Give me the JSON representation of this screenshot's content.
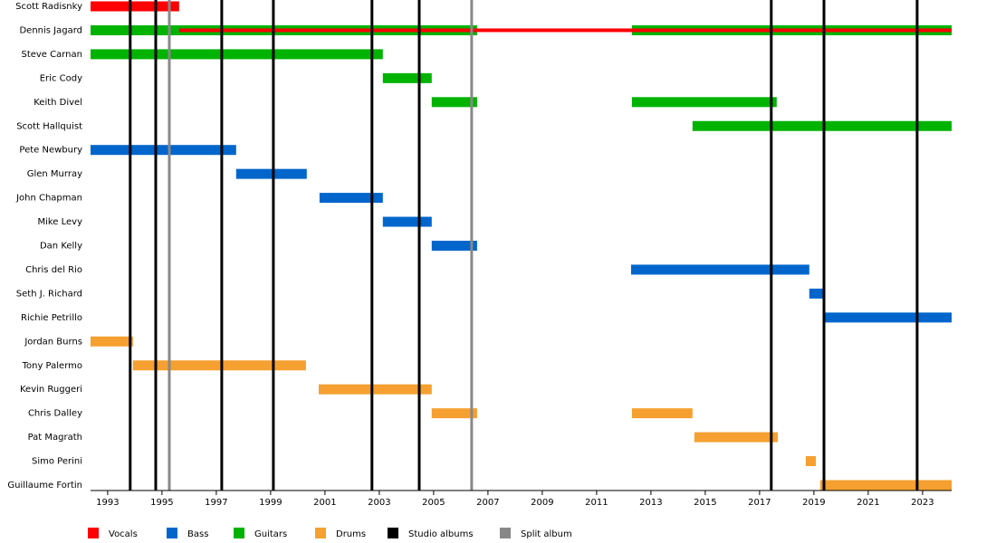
{
  "chart_data": {
    "type": "timeline",
    "xlim": [
      1992.37,
      2024.07
    ],
    "xticks": [
      1993,
      1995,
      1997,
      1999,
      2001,
      2003,
      2005,
      2007,
      2009,
      2011,
      2013,
      2015,
      2017,
      2019,
      2021,
      2023
    ],
    "roles": [
      {
        "name": "Vocals",
        "color": "#ff0000"
      },
      {
        "name": "Bass",
        "color": "#0066cc"
      },
      {
        "name": "Guitars",
        "color": "#00b300"
      },
      {
        "name": "Drums",
        "color": "#f5a030"
      }
    ],
    "members": [
      {
        "name": "Scott Radisnky",
        "bars": [
          {
            "role": "Vocals",
            "start": 1992.37,
            "end": 1995.63
          }
        ]
      },
      {
        "name": "Dennis Jagard",
        "bars": [
          {
            "role": "Guitars",
            "start": 1992.37,
            "end": 2006.6
          },
          {
            "role": "Guitars",
            "start": 2012.3,
            "end": 2024.07
          },
          {
            "role": "Vocals",
            "start": 1995.63,
            "end": 2024.07
          }
        ]
      },
      {
        "name": "Steve Carnan",
        "bars": [
          {
            "role": "Guitars",
            "start": 1992.37,
            "end": 2003.13
          }
        ]
      },
      {
        "name": "Eric Cody",
        "bars": [
          {
            "role": "Guitars",
            "start": 2003.13,
            "end": 2004.93
          }
        ]
      },
      {
        "name": "Keith Divel",
        "bars": [
          {
            "role": "Guitars",
            "start": 2004.93,
            "end": 2006.6
          },
          {
            "role": "Guitars",
            "start": 2012.3,
            "end": 2017.63
          }
        ]
      },
      {
        "name": "Scott Hallquist",
        "bars": [
          {
            "role": "Guitars",
            "start": 2014.53,
            "end": 2024.07
          }
        ]
      },
      {
        "name": "Pete Newbury",
        "bars": [
          {
            "role": "Bass",
            "start": 1992.37,
            "end": 1997.73
          }
        ]
      },
      {
        "name": "Glen Murray",
        "bars": [
          {
            "role": "Bass",
            "start": 1997.73,
            "end": 2000.33
          }
        ]
      },
      {
        "name": "John Chapman",
        "bars": [
          {
            "role": "Bass",
            "start": 2000.8,
            "end": 2003.13
          }
        ]
      },
      {
        "name": "Mike Levy",
        "bars": [
          {
            "role": "Bass",
            "start": 2003.13,
            "end": 2004.93
          }
        ]
      },
      {
        "name": "Dan Kelly",
        "bars": [
          {
            "role": "Bass",
            "start": 2004.93,
            "end": 2006.6
          }
        ]
      },
      {
        "name": "Chris del Rio",
        "bars": [
          {
            "role": "Bass",
            "start": 2012.27,
            "end": 2018.83
          }
        ]
      },
      {
        "name": "Seth J. Richard",
        "bars": [
          {
            "role": "Bass",
            "start": 2018.83,
            "end": 2019.4
          }
        ]
      },
      {
        "name": "Richie Petrillo",
        "bars": [
          {
            "role": "Bass",
            "start": 2019.4,
            "end": 2024.07
          }
        ]
      },
      {
        "name": "Jordan Burns",
        "bars": [
          {
            "role": "Drums",
            "start": 1992.37,
            "end": 1993.93
          }
        ]
      },
      {
        "name": "Tony Palermo",
        "bars": [
          {
            "role": "Drums",
            "start": 1993.93,
            "end": 2000.3
          }
        ]
      },
      {
        "name": "Kevin Ruggeri",
        "bars": [
          {
            "role": "Drums",
            "start": 2000.77,
            "end": 2004.93
          }
        ]
      },
      {
        "name": "Chris Dalley",
        "bars": [
          {
            "role": "Drums",
            "start": 2004.93,
            "end": 2006.6
          },
          {
            "role": "Drums",
            "start": 2012.3,
            "end": 2014.53
          }
        ]
      },
      {
        "name": "Pat Magrath",
        "bars": [
          {
            "role": "Drums",
            "start": 2014.6,
            "end": 2017.67
          }
        ]
      },
      {
        "name": "Simo Perini",
        "bars": [
          {
            "role": "Drums",
            "start": 2018.7,
            "end": 2019.07
          }
        ]
      },
      {
        "name": "Guillaume Fortin",
        "bars": [
          {
            "role": "Drums",
            "start": 2019.23,
            "end": 2024.07
          }
        ]
      }
    ],
    "events": [
      {
        "name": "Studio albums",
        "color": "#000000",
        "values": [
          1993.83,
          1994.77,
          1997.2,
          1999.1,
          2002.73,
          2004.47,
          2017.43,
          2019.37,
          2022.8
        ]
      },
      {
        "name": "Split album",
        "color": "#888888",
        "values": [
          1995.27,
          2006.4
        ]
      }
    ]
  }
}
